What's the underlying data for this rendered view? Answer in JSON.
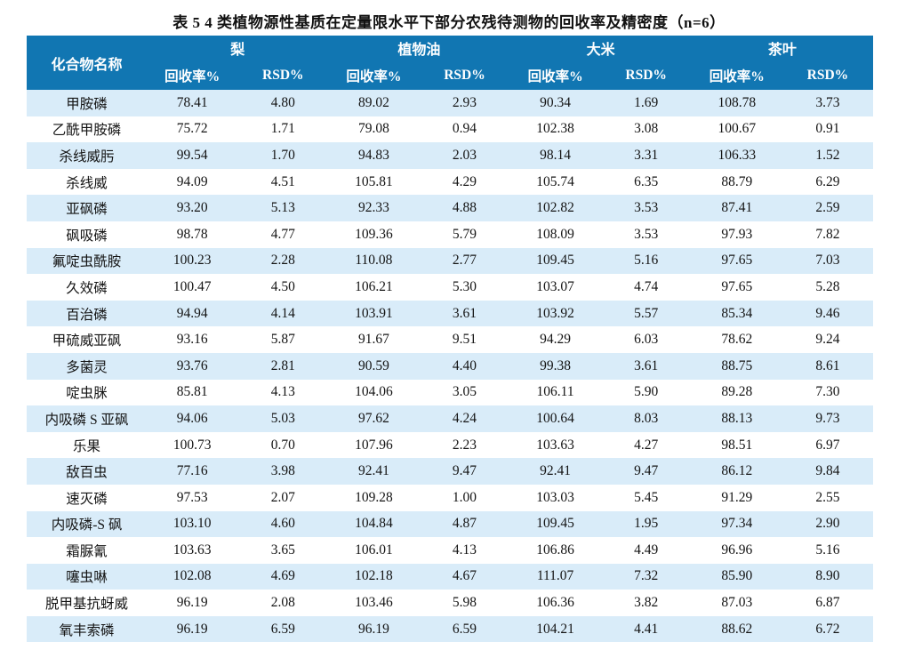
{
  "page": {
    "title": "表 5  4 类植物源性基质在定量限水平下部分农残待测物的回收率及精密度（n=6）"
  },
  "table": {
    "compound_header": "化合物名称",
    "groups": [
      {
        "label": "梨"
      },
      {
        "label": "植物油"
      },
      {
        "label": "大米"
      },
      {
        "label": "茶叶"
      }
    ],
    "sub_headers": {
      "recovery": "回收率%",
      "rsd": "RSD%"
    },
    "colors": {
      "header_bg": "#1176b2",
      "header_text": "#ffffff",
      "stripe_bg": "#d9ecf9",
      "text": "#141414"
    },
    "rows": [
      {
        "name": "甲胺磷",
        "values": [
          "78.41",
          "4.80",
          "89.02",
          "2.93",
          "90.34",
          "1.69",
          "108.78",
          "3.73"
        ]
      },
      {
        "name": "乙酰甲胺磷",
        "values": [
          "75.72",
          "1.71",
          "79.08",
          "0.94",
          "102.38",
          "3.08",
          "100.67",
          "0.91"
        ]
      },
      {
        "name": "杀线威肟",
        "values": [
          "99.54",
          "1.70",
          "94.83",
          "2.03",
          "98.14",
          "3.31",
          "106.33",
          "1.52"
        ]
      },
      {
        "name": "杀线威",
        "values": [
          "94.09",
          "4.51",
          "105.81",
          "4.29",
          "105.74",
          "6.35",
          "88.79",
          "6.29"
        ]
      },
      {
        "name": "亚砜磷",
        "values": [
          "93.20",
          "5.13",
          "92.33",
          "4.88",
          "102.82",
          "3.53",
          "87.41",
          "2.59"
        ]
      },
      {
        "name": "砜吸磷",
        "values": [
          "98.78",
          "4.77",
          "109.36",
          "5.79",
          "108.09",
          "3.53",
          "97.93",
          "7.82"
        ]
      },
      {
        "name": "氟啶虫酰胺",
        "values": [
          "100.23",
          "2.28",
          "110.08",
          "2.77",
          "109.45",
          "5.16",
          "97.65",
          "7.03"
        ]
      },
      {
        "name": "久效磷",
        "values": [
          "100.47",
          "4.50",
          "106.21",
          "5.30",
          "103.07",
          "4.74",
          "97.65",
          "5.28"
        ]
      },
      {
        "name": "百治磷",
        "values": [
          "94.94",
          "4.14",
          "103.91",
          "3.61",
          "103.92",
          "5.57",
          "85.34",
          "9.46"
        ]
      },
      {
        "name": "甲硫威亚砜",
        "values": [
          "93.16",
          "5.87",
          "91.67",
          "9.51",
          "94.29",
          "6.03",
          "78.62",
          "9.24"
        ]
      },
      {
        "name": "多菌灵",
        "values": [
          "93.76",
          "2.81",
          "90.59",
          "4.40",
          "99.38",
          "3.61",
          "88.75",
          "8.61"
        ]
      },
      {
        "name": "啶虫脒",
        "values": [
          "85.81",
          "4.13",
          "104.06",
          "3.05",
          "106.11",
          "5.90",
          "89.28",
          "7.30"
        ]
      },
      {
        "name": "内吸磷 S 亚砜",
        "values": [
          "94.06",
          "5.03",
          "97.62",
          "4.24",
          "100.64",
          "8.03",
          "88.13",
          "9.73"
        ]
      },
      {
        "name": "乐果",
        "values": [
          "100.73",
          "0.70",
          "107.96",
          "2.23",
          "103.63",
          "4.27",
          "98.51",
          "6.97"
        ]
      },
      {
        "name": "敌百虫",
        "values": [
          "77.16",
          "3.98",
          "92.41",
          "9.47",
          "92.41",
          "9.47",
          "86.12",
          "9.84"
        ]
      },
      {
        "name": "速灭磷",
        "values": [
          "97.53",
          "2.07",
          "109.28",
          "1.00",
          "103.03",
          "5.45",
          "91.29",
          "2.55"
        ]
      },
      {
        "name": "内吸磷-S 砜",
        "values": [
          "103.10",
          "4.60",
          "104.84",
          "4.87",
          "109.45",
          "1.95",
          "97.34",
          "2.90"
        ]
      },
      {
        "name": "霜脲氰",
        "values": [
          "103.63",
          "3.65",
          "106.01",
          "4.13",
          "106.86",
          "4.49",
          "96.96",
          "5.16"
        ]
      },
      {
        "name": "噻虫啉",
        "values": [
          "102.08",
          "4.69",
          "102.18",
          "4.67",
          "111.07",
          "7.32",
          "85.90",
          "8.90"
        ]
      },
      {
        "name": "脱甲基抗蚜威",
        "values": [
          "96.19",
          "2.08",
          "103.46",
          "5.98",
          "106.36",
          "3.82",
          "87.03",
          "6.87"
        ]
      },
      {
        "name": "氧丰索磷",
        "values": [
          "96.19",
          "6.59",
          "96.19",
          "6.59",
          "104.21",
          "4.41",
          "88.62",
          "6.72"
        ]
      }
    ]
  }
}
